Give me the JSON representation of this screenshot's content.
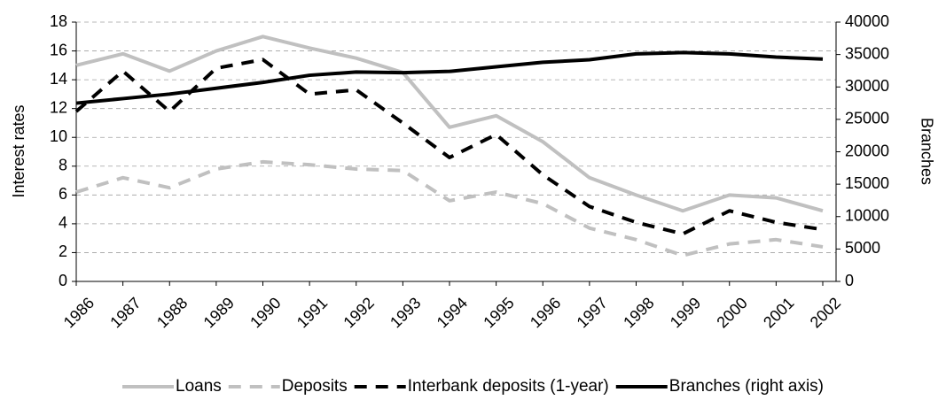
{
  "chart_data": {
    "type": "line",
    "categories": [
      "1986",
      "1987",
      "1988",
      "1989",
      "1990",
      "1991",
      "1992",
      "1993",
      "1994",
      "1995",
      "1996",
      "1997",
      "1998",
      "1999",
      "2000",
      "2001",
      "2002"
    ],
    "ylabel": "Interest rates",
    "y2label": "Branches",
    "ylim": [
      0,
      18
    ],
    "yticks": [
      0,
      2,
      4,
      6,
      8,
      10,
      12,
      14,
      16,
      18
    ],
    "y2lim": [
      0,
      40000
    ],
    "y2ticks": [
      0,
      5000,
      10000,
      15000,
      20000,
      25000,
      30000,
      35000,
      40000
    ],
    "grid": true,
    "legend": "bottom",
    "series": [
      {
        "name": "Loans",
        "color": "#c0c0c0",
        "line_style": "solid",
        "values": [
          15,
          15.8,
          14.6,
          16,
          17,
          16.2,
          15.5,
          14.5,
          10.7,
          11.5,
          9.7,
          7.2,
          6,
          4.9,
          6,
          5.8,
          4.9
        ]
      },
      {
        "name": "Deposits",
        "color": "#c0c0c0",
        "line_style": "dashed",
        "values": [
          6.2,
          7.2,
          6.5,
          7.8,
          8.3,
          8.1,
          7.8,
          7.7,
          5.6,
          6.2,
          5.4,
          3.7,
          2.9,
          1.8,
          2.6,
          2.9,
          2.4
        ]
      },
      {
        "name": "Interbank deposits (1-year)",
        "color": "#000000",
        "line_style": "dashed",
        "values": [
          11.8,
          14.6,
          11.8,
          14.8,
          15.4,
          13,
          13.3,
          11,
          8.6,
          10.2,
          7.4,
          5.2,
          4.1,
          3.3,
          4.9,
          4.1,
          3.6
        ]
      },
      {
        "name": "Branches (right axis)",
        "color": "#000000",
        "line_style": "solid",
        "axis": "y2",
        "values": [
          27500,
          28200,
          28900,
          29800,
          30700,
          31800,
          32300,
          32200,
          32400,
          33100,
          33800,
          34200,
          35100,
          35300,
          35100,
          34600,
          34300
        ]
      }
    ]
  }
}
